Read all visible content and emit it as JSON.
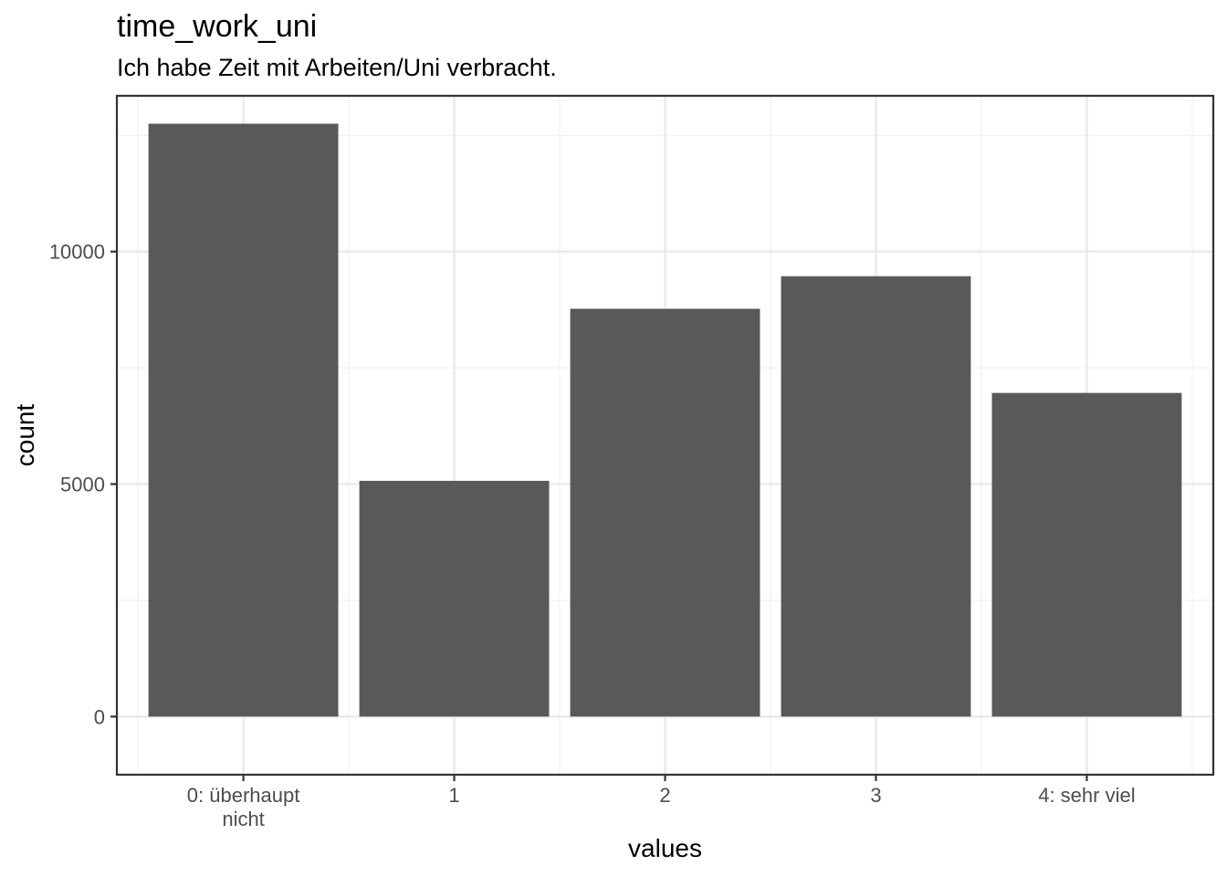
{
  "chart_data": {
    "type": "bar",
    "title": "time_work_uni",
    "subtitle": "Ich habe Zeit mit Arbeiten/Uni verbracht.",
    "xlabel": "values",
    "ylabel": "count",
    "categories": [
      "0: überhaupt\nnicht",
      "1",
      "2",
      "3",
      "4: sehr viel"
    ],
    "values": [
      12750,
      5070,
      8770,
      9470,
      6960
    ],
    "ylim": [
      -1250,
      13350
    ],
    "yticks": [
      0,
      5000,
      10000
    ],
    "ytick_labels": [
      "0",
      "5000",
      "10000"
    ],
    "grid": true,
    "legend": "none"
  }
}
